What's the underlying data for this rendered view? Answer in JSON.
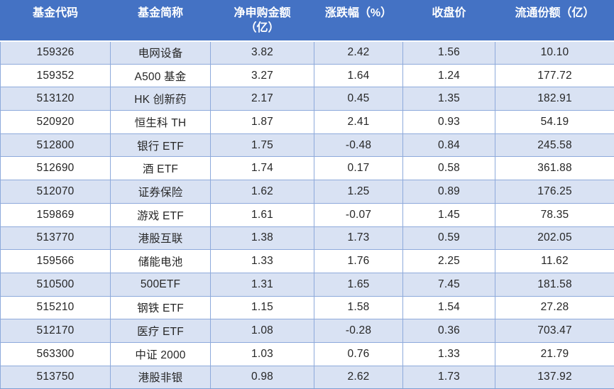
{
  "colors": {
    "header_bg": "#4472C4",
    "header_text": "#FFFFFF",
    "band_row_bg": "#D9E2F3",
    "plain_row_bg": "#FFFFFF",
    "border": "#8EAADB",
    "body_text": "#262626"
  },
  "table": {
    "headers": [
      {
        "label": "基金代码",
        "sub": ""
      },
      {
        "label": "基金简称",
        "sub": ""
      },
      {
        "label": "净申购金额",
        "sub": "（亿）"
      },
      {
        "label": "涨跌幅（%）",
        "sub": ""
      },
      {
        "label": "收盘价",
        "sub": ""
      },
      {
        "label": "流通份额（亿）",
        "sub": ""
      }
    ],
    "rows": [
      [
        "159326",
        "电网设备",
        "3.82",
        "2.42",
        "1.56",
        "10.10"
      ],
      [
        "159352",
        "A500 基金",
        "3.27",
        "1.64",
        "1.24",
        "177.72"
      ],
      [
        "513120",
        "HK 创新药",
        "2.17",
        "0.45",
        "1.35",
        "182.91"
      ],
      [
        "520920",
        "恒生科 TH",
        "1.87",
        "2.41",
        "0.93",
        "54.19"
      ],
      [
        "512800",
        "银行 ETF",
        "1.75",
        "-0.48",
        "0.84",
        "245.58"
      ],
      [
        "512690",
        "酒 ETF",
        "1.74",
        "0.17",
        "0.58",
        "361.88"
      ],
      [
        "512070",
        "证券保险",
        "1.62",
        "1.25",
        "0.89",
        "176.25"
      ],
      [
        "159869",
        "游戏 ETF",
        "1.61",
        "-0.07",
        "1.45",
        "78.35"
      ],
      [
        "513770",
        "港股互联",
        "1.38",
        "1.73",
        "0.59",
        "202.05"
      ],
      [
        "159566",
        "储能电池",
        "1.33",
        "1.76",
        "2.25",
        "11.62"
      ],
      [
        "510500",
        "500ETF",
        "1.31",
        "1.65",
        "7.45",
        "181.58"
      ],
      [
        "515210",
        "钢铁 ETF",
        "1.15",
        "1.58",
        "1.54",
        "27.28"
      ],
      [
        "512170",
        "医疗 ETF",
        "1.08",
        "-0.28",
        "0.36",
        "703.47"
      ],
      [
        "563300",
        "中证 2000",
        "1.03",
        "0.76",
        "1.33",
        "21.79"
      ],
      [
        "513750",
        "港股非银",
        "0.98",
        "2.62",
        "1.73",
        "137.92"
      ]
    ]
  }
}
